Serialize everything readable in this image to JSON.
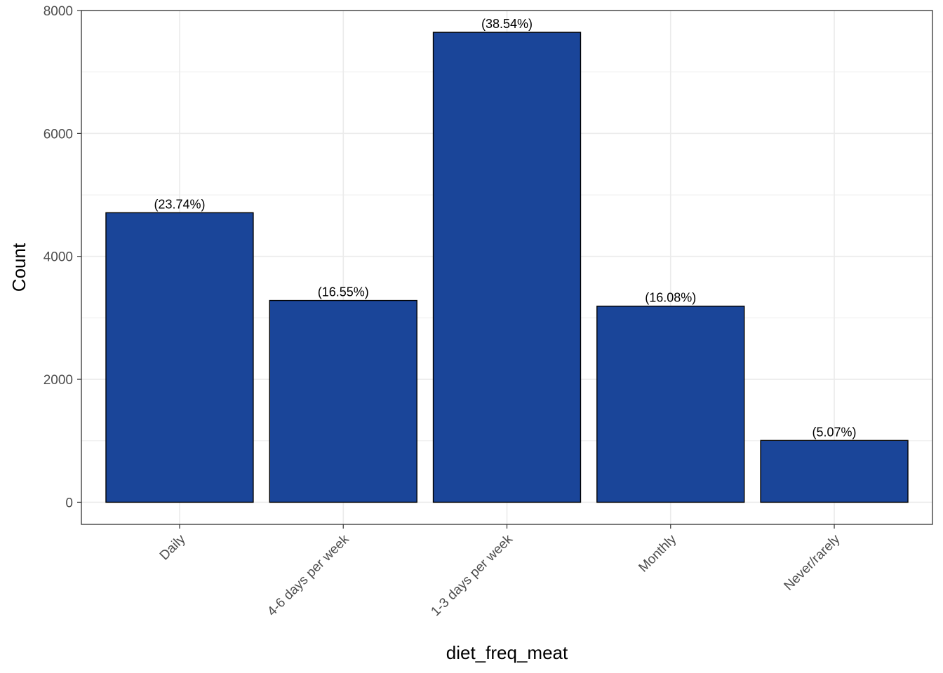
{
  "chart_data": {
    "type": "bar",
    "categories": [
      "Daily",
      "4-6 days per week",
      "1-3 days per week",
      "Monthly",
      "Never/rarely"
    ],
    "values": [
      4710,
      3283,
      7645,
      3190,
      1005
    ],
    "data_labels": [
      "(23.74%)",
      "(16.55%)",
      "(38.54%)",
      "(16.08%)",
      "(5.07%)"
    ],
    "title": "",
    "xlabel": "diet_freq_meat",
    "ylabel": "Count",
    "ylim": [
      -360,
      8000
    ],
    "yticks": [
      0,
      2000,
      4000,
      6000,
      8000
    ],
    "ytick_labels": [
      "0",
      "2000",
      "4000",
      "6000",
      "8000"
    ],
    "grid": true,
    "legend": "none",
    "bar_color": "#1a4599",
    "bar_edge_color": "#000000",
    "grid_color": "#ebebeb"
  }
}
